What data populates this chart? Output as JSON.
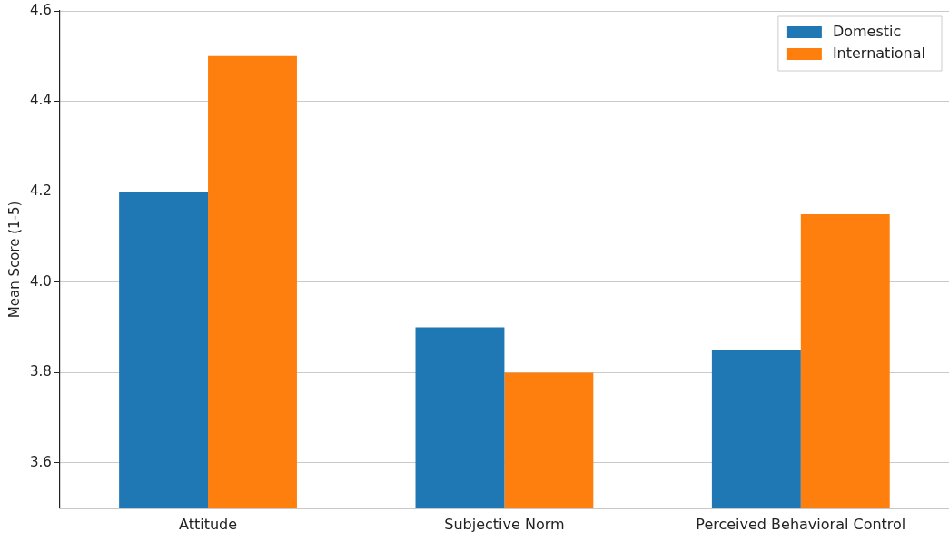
{
  "chart_data": {
    "type": "bar",
    "ylabel": "Mean Score (1-5)",
    "categories": [
      "Attitude",
      "Subjective Norm",
      "Perceived Behavioral Control"
    ],
    "series": [
      {
        "name": "Domestic",
        "color": "#1f77b4",
        "values": [
          4.2,
          3.9,
          3.85
        ]
      },
      {
        "name": "International",
        "color": "#ff7f0e",
        "values": [
          4.5,
          3.8,
          4.15
        ]
      }
    ],
    "ylim": [
      3.5,
      4.6
    ],
    "yticks": [
      3.6,
      3.8,
      {
        "value": 4.0,
        "label": "4.0"
      },
      4.2,
      4.4,
      4.6
    ],
    "grid": "y",
    "legend": "top right"
  }
}
